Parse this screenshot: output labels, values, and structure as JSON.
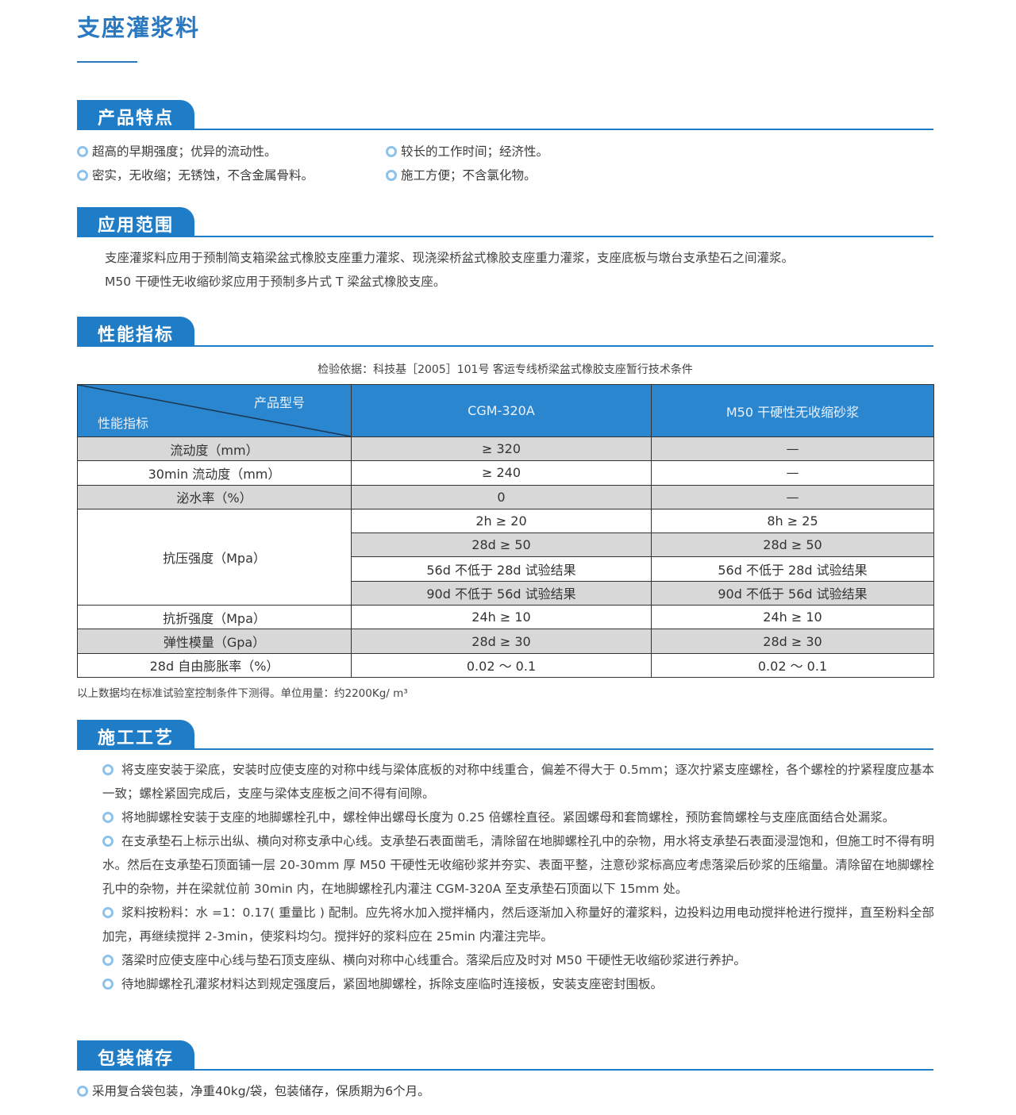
{
  "title": "支座灌浆料",
  "sections": {
    "features": {
      "heading": "产品特点",
      "items": [
        "超高的早期强度；优异的流动性。",
        "较长的工作时间；经济性。",
        "密实，无收缩；无锈蚀，不含金属骨料。",
        "施工方便；不含氯化物。"
      ]
    },
    "application": {
      "heading": "应用范围",
      "lines": [
        "支座灌浆料应用于预制简支箱梁盆式橡胶支座重力灌浆、现浇梁桥盆式橡胶支座重力灌浆，支座底板与墩台支承垫石之间灌浆。",
        "M50 干硬性无收缩砂浆应用于预制多片式 T 梁盆式橡胶支座。"
      ]
    },
    "performance": {
      "heading": "性能指标",
      "basis": "检验依据：科技基［2005］101号 客运专线桥梁盆式橡胶支座暂行技术条件",
      "table": {
        "corner_top": "产品型号",
        "corner_bottom": "性能指标",
        "col1": "CGM-320A",
        "col2": "M50 干硬性无收缩砂浆",
        "rows": [
          {
            "label": "流动度（mm）",
            "c1": "≥ 320",
            "c2": "—"
          },
          {
            "label": "30min 流动度（mm）",
            "c1": "≥ 240",
            "c2": "—"
          },
          {
            "label": "泌水率（%）",
            "c1": "0",
            "c2": "—"
          },
          {
            "label": "抗压强度（Mpa）",
            "sub": [
              {
                "c1": "2h ≥ 20",
                "c2": "8h ≥ 25"
              },
              {
                "c1": "28d ≥ 50",
                "c2": "28d ≥ 50"
              },
              {
                "c1": "56d 不低于 28d 试验结果",
                "c2": "56d 不低于 28d 试验结果"
              },
              {
                "c1": "90d 不低于 56d 试验结果",
                "c2": "90d 不低于 56d 试验结果"
              }
            ]
          },
          {
            "label": "抗折强度（Mpa）",
            "c1": "24h ≥ 10",
            "c2": "24h ≥ 10"
          },
          {
            "label": "弹性模量（Gpa）",
            "c1": "28d ≥ 30",
            "c2": "28d ≥ 30"
          },
          {
            "label": "28d 自由膨胀率（%）",
            "c1": "0.02 ～ 0.1",
            "c2": "0.02 ～ 0.1"
          }
        ]
      },
      "note": "以上数据均在标准试验室控制条件下测得。单位用量：约2200Kg/ m³"
    },
    "construction": {
      "heading": "施工工艺",
      "paragraphs": [
        "将支座安装于梁底，安装时应使支座的对称中线与梁体底板的对称中线重合，偏差不得大于 0.5mm；逐次拧紧支座螺栓，各个螺栓的拧紧程度应基本一致；螺栓紧固完成后，支座与梁体支座板之间不得有间隙。",
        "将地脚螺栓安装于支座的地脚螺栓孔中，螺栓伸出螺母长度为 0.25 倍螺栓直径。紧固螺母和套筒螺栓，预防套筒螺栓与支座底面结合处漏浆。",
        "在支承垫石上标示出纵、横向对称支承中心线。支承垫石表面凿毛，清除留在地脚螺栓孔中的杂物，用水将支承垫石表面浸湿饱和，但施工时不得有明水。然后在支承垫石顶面铺一层 20-30mm 厚 M50 干硬性无收缩砂浆并夯实、表面平整，注意砂浆标高应考虑落梁后砂浆的压缩量。清除留在地脚螺栓孔中的杂物，并在梁就位前 30min 内，在地脚螺栓孔内灌注 CGM-320A 至支承垫石顶面以下 15mm 处。",
        "浆料按粉料：水 =1：0.17( 重量比 ) 配制。应先将水加入搅拌桶内，然后逐渐加入称量好的灌浆料，边投料边用电动搅拌枪进行搅拌，直至粉料全部加完，再继续搅拌 2-3min，使浆料均匀。搅拌好的浆料应在 25min 内灌注完毕。",
        "落梁时应使支座中心线与垫石顶支座纵、横向对称中心线重合。落梁后应及时对 M50 干硬性无收缩砂浆进行养护。",
        "待地脚螺栓孔灌浆材料达到规定强度后，紧固地脚螺栓，拆除支座临时连接板，安装支座密封围板。"
      ]
    },
    "packaging": {
      "heading": "包装储存",
      "items": [
        "采用复合袋包装，净重40kg/袋，包装储存，保质期为6个月。"
      ]
    }
  },
  "colors": {
    "accent": "#1f7cc6",
    "table_header": "#2b86d0",
    "row_gray": "#d8d8d8",
    "bullet": "#8dc3ea"
  }
}
